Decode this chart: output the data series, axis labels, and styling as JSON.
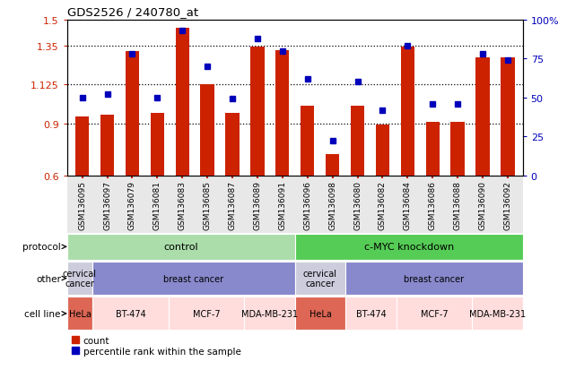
{
  "title": "GDS2526 / 240780_at",
  "samples": [
    "GSM136095",
    "GSM136097",
    "GSM136079",
    "GSM136081",
    "GSM136083",
    "GSM136085",
    "GSM136087",
    "GSM136089",
    "GSM136091",
    "GSM136096",
    "GSM136098",
    "GSM136080",
    "GSM136082",
    "GSM136084",
    "GSM136086",
    "GSM136088",
    "GSM136090",
    "GSM136092"
  ],
  "count_values": [
    0.94,
    0.95,
    1.32,
    0.96,
    1.45,
    1.125,
    0.96,
    1.345,
    1.325,
    1.0,
    0.72,
    1.0,
    0.895,
    1.345,
    0.91,
    0.91,
    1.28,
    1.28
  ],
  "percentile_values": [
    50,
    52,
    78,
    50,
    93,
    70,
    49,
    88,
    80,
    62,
    22,
    60,
    42,
    83,
    46,
    46,
    78,
    74
  ],
  "ylim_left": [
    0.6,
    1.5
  ],
  "ylim_right": [
    0,
    100
  ],
  "yticks_left": [
    0.6,
    0.9,
    1.125,
    1.35,
    1.5
  ],
  "ytick_labels_left": [
    "0.6",
    "0.9",
    "1.125",
    "1.35",
    "1.5"
  ],
  "yticks_right": [
    0,
    25,
    50,
    75,
    100
  ],
  "ytick_labels_right": [
    "0",
    "25",
    "50",
    "75",
    "100%"
  ],
  "dotted_lines": [
    0.9,
    1.125,
    1.35
  ],
  "bar_color": "#cc2200",
  "dot_color": "#0000bb",
  "protocol_row": {
    "label": "protocol",
    "groups": [
      {
        "text": "control",
        "start": 0,
        "end": 9,
        "color": "#aaddaa"
      },
      {
        "text": "c-MYC knockdown",
        "start": 9,
        "end": 18,
        "color": "#55cc55"
      }
    ]
  },
  "other_row": {
    "label": "other",
    "groups": [
      {
        "text": "cervical\ncancer",
        "start": 0,
        "end": 1,
        "color": "#ccccdd"
      },
      {
        "text": "breast cancer",
        "start": 1,
        "end": 9,
        "color": "#8888cc"
      },
      {
        "text": "cervical\ncancer",
        "start": 9,
        "end": 11,
        "color": "#ccccdd"
      },
      {
        "text": "breast cancer",
        "start": 11,
        "end": 18,
        "color": "#8888cc"
      }
    ]
  },
  "cellline_row": {
    "label": "cell line",
    "groups": [
      {
        "text": "HeLa",
        "start": 0,
        "end": 1,
        "color": "#dd6655"
      },
      {
        "text": "BT-474",
        "start": 1,
        "end": 4,
        "color": "#ffdddd"
      },
      {
        "text": "MCF-7",
        "start": 4,
        "end": 7,
        "color": "#ffdddd"
      },
      {
        "text": "MDA-MB-231",
        "start": 7,
        "end": 9,
        "color": "#ffdddd"
      },
      {
        "text": "HeLa",
        "start": 9,
        "end": 11,
        "color": "#dd6655"
      },
      {
        "text": "BT-474",
        "start": 11,
        "end": 13,
        "color": "#ffdddd"
      },
      {
        "text": "MCF-7",
        "start": 13,
        "end": 16,
        "color": "#ffdddd"
      },
      {
        "text": "MDA-MB-231",
        "start": 16,
        "end": 18,
        "color": "#ffdddd"
      }
    ]
  },
  "legend_items": [
    {
      "label": "count",
      "color": "#cc2200"
    },
    {
      "label": "percentile rank within the sample",
      "color": "#0000bb"
    }
  ]
}
